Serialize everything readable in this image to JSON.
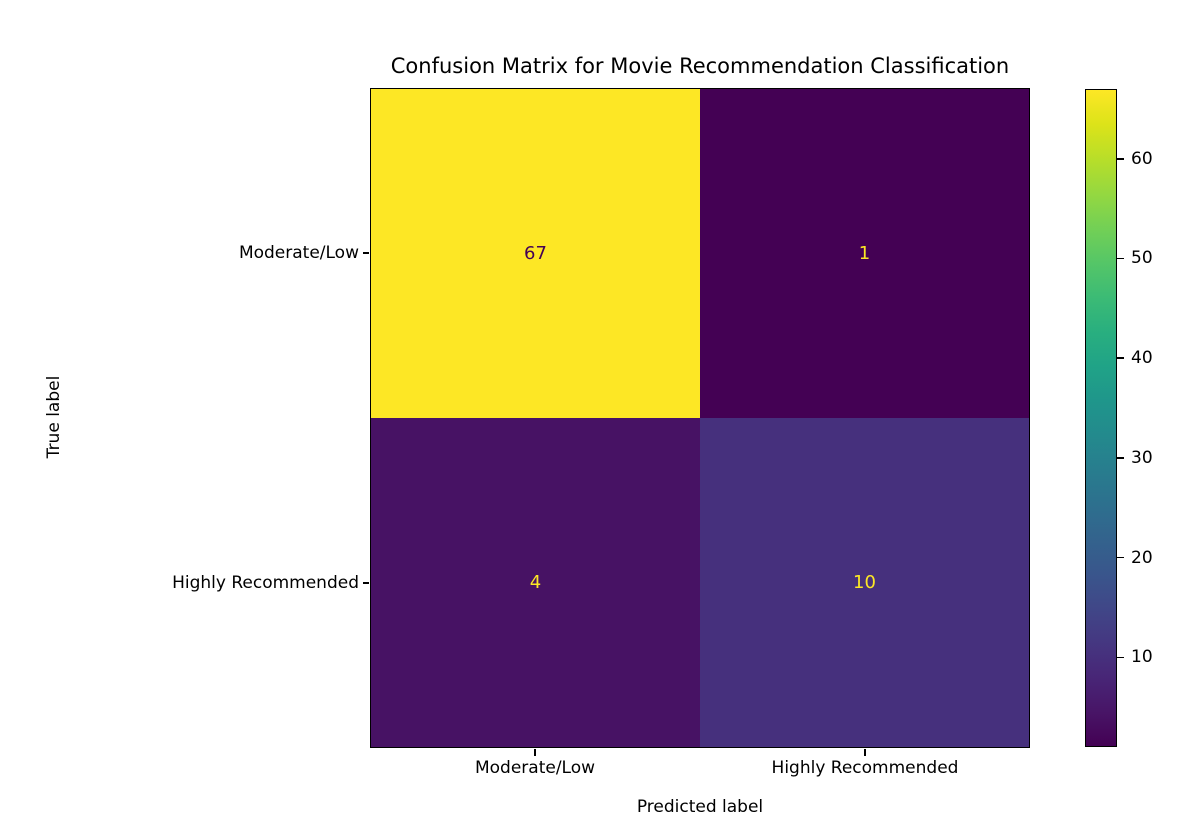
{
  "chart_data": {
    "type": "heatmap",
    "title": "Confusion Matrix for Movie Recommendation Classification",
    "xlabel": "Predicted label",
    "ylabel": "True label",
    "x_categories": [
      "Moderate/Low",
      "Highly Recommended"
    ],
    "y_categories": [
      "Moderate/Low",
      "Highly Recommended"
    ],
    "matrix": [
      [
        67,
        1
      ],
      [
        4,
        10
      ]
    ],
    "vmin": 1,
    "vmax": 67,
    "colormap": "viridis",
    "colorbar_ticks": [
      10,
      20,
      30,
      40,
      50,
      60
    ],
    "colorbar_position": "right",
    "grid": false,
    "cell_colors": [
      [
        "#fde725",
        "#440154"
      ],
      [
        "#471264",
        "#46307d"
      ]
    ],
    "cell_text_colors": [
      [
        "#440154",
        "#fde725"
      ],
      [
        "#fde725",
        "#fde725"
      ]
    ],
    "viridis_stops": [
      "#440154",
      "#481567",
      "#482677",
      "#453781",
      "#404788",
      "#39568c",
      "#33638d",
      "#2d708e",
      "#287d8e",
      "#238a8d",
      "#1f968b",
      "#20a387",
      "#29af7f",
      "#3cbb75",
      "#55c667",
      "#73d055",
      "#95d840",
      "#b8de29",
      "#dce319",
      "#fde725"
    ]
  }
}
